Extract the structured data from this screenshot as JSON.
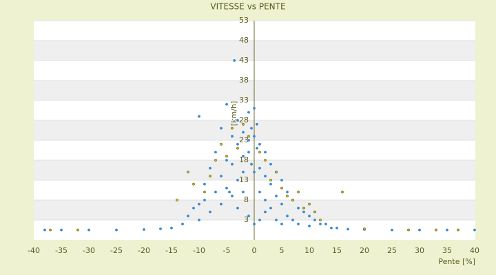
{
  "chart_data": {
    "type": "scatter",
    "title": "VITESSE vs PENTE",
    "x_label": "Pente [%]",
    "y_label": "[km/h]",
    "xlim": [
      -40,
      40
    ],
    "xticks": [
      -40,
      -35,
      -30,
      -25,
      -20,
      -15,
      -10,
      -5,
      0,
      5,
      10,
      15,
      20,
      25,
      30,
      35,
      40
    ],
    "ylim": [
      -2,
      53
    ],
    "yticks": [
      3,
      8,
      13,
      18,
      23,
      28,
      33,
      38,
      43,
      48,
      53
    ],
    "grid": true,
    "series": [
      {
        "color": "#3b8ad0",
        "x": [
          -38,
          -35,
          -30,
          -25,
          -20,
          -17,
          -15,
          -13,
          -12,
          -11,
          -10,
          -10,
          -9,
          -9,
          -8,
          -8,
          -7,
          -7,
          -6,
          -6,
          -5,
          -5,
          -5,
          -4,
          -4,
          -4,
          -3,
          -3,
          -3,
          -3,
          -2,
          -2,
          -2,
          -2,
          -1,
          -1,
          -1,
          -1,
          -0.5,
          -0.5,
          0,
          0,
          0,
          0,
          0.5,
          0.5,
          1,
          1,
          1,
          1,
          2,
          2,
          2,
          2,
          3,
          3,
          3,
          4,
          4,
          4,
          5,
          5,
          5,
          6,
          6,
          7,
          7,
          8,
          8,
          9,
          10,
          10,
          11,
          12,
          13,
          14,
          15,
          17,
          20,
          25,
          30,
          35,
          40,
          -10,
          -6,
          -3.6,
          -4.5
        ],
        "values": [
          0.5,
          0.5,
          0.5,
          0.5,
          0.6,
          0.8,
          1,
          2,
          4,
          6,
          29,
          3,
          8,
          12,
          5,
          16,
          10,
          20,
          7,
          14,
          32,
          18,
          11,
          24,
          9,
          17,
          28,
          22,
          13,
          6,
          25,
          19,
          15,
          10,
          30,
          23,
          20,
          4,
          26,
          17,
          31,
          24,
          15,
          2,
          27,
          21,
          22,
          16,
          10,
          3,
          20,
          14,
          8,
          5,
          17,
          12,
          6,
          15,
          9,
          3,
          13,
          7,
          2,
          10,
          4,
          8,
          3,
          6,
          2,
          5,
          4,
          1.5,
          3,
          2,
          2,
          1,
          1,
          0.7,
          0.6,
          0.5,
          0.5,
          0.5,
          0.5,
          7,
          26,
          43,
          10
        ]
      },
      {
        "color": "#c8b428",
        "x": [
          -37,
          -32,
          -14,
          -12,
          -11,
          -9,
          -8,
          -7,
          -6,
          -5,
          -4,
          -3,
          -2,
          -1,
          1,
          2,
          3,
          4,
          5,
          6,
          7,
          8,
          9,
          10,
          11,
          12,
          16,
          20,
          28,
          33,
          37
        ],
        "values": [
          0.5,
          0.5,
          8,
          15,
          12,
          10,
          14,
          18,
          22,
          19,
          26,
          21,
          27,
          24,
          20,
          18,
          13,
          15,
          11,
          9,
          8,
          10,
          6,
          7,
          5,
          3,
          10,
          0.8,
          0.5,
          0.5,
          0.5
        ]
      }
    ]
  }
}
